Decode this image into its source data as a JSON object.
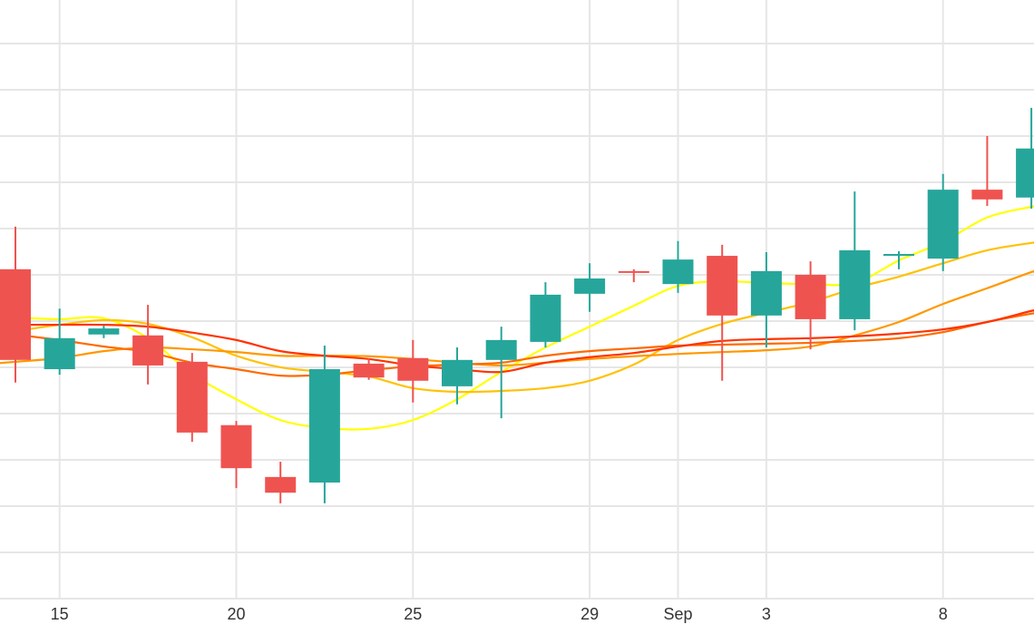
{
  "chart_data": {
    "type": "candlestick",
    "title": "",
    "xlabel": "",
    "ylabel": "",
    "ylim": [
      0,
      129.4
    ],
    "grid": true,
    "legend": "none",
    "y_gridlines": [
      0,
      10,
      20,
      30,
      40,
      50,
      60,
      70,
      80,
      90,
      100,
      110,
      120
    ],
    "x_tick_labels": [
      {
        "index": 1,
        "label": "15"
      },
      {
        "index": 5,
        "label": "20"
      },
      {
        "index": 9,
        "label": "25"
      },
      {
        "index": 13,
        "label": "29"
      },
      {
        "index": 15,
        "label": "Sep"
      },
      {
        "index": 17,
        "label": "3"
      },
      {
        "index": 21,
        "label": "8"
      }
    ],
    "colors": {
      "up": "#26a69a",
      "down": "#ef5350",
      "grid": "#e6e6e6"
    },
    "candles": [
      {
        "o": 71.2,
        "h": 80.4,
        "l": 46.7,
        "c": 51.6
      },
      {
        "o": 49.6,
        "h": 62.7,
        "l": 48.4,
        "c": 56.3
      },
      {
        "o": 57.1,
        "h": 59.0,
        "l": 56.3,
        "c": 58.4
      },
      {
        "o": 56.9,
        "h": 63.5,
        "l": 46.3,
        "c": 50.4
      },
      {
        "o": 51.2,
        "h": 53.1,
        "l": 33.9,
        "c": 35.9
      },
      {
        "o": 37.5,
        "h": 38.4,
        "l": 23.9,
        "c": 28.2
      },
      {
        "o": 26.3,
        "h": 29.6,
        "l": 20.6,
        "c": 22.9
      },
      {
        "o": 25.1,
        "h": 54.7,
        "l": 20.6,
        "c": 49.6
      },
      {
        "o": 50.8,
        "h": 52.0,
        "l": 47.3,
        "c": 47.8
      },
      {
        "o": 52.0,
        "h": 55.9,
        "l": 42.4,
        "c": 47.1
      },
      {
        "o": 45.9,
        "h": 54.3,
        "l": 42.0,
        "c": 51.6
      },
      {
        "o": 51.6,
        "h": 58.8,
        "l": 39.0,
        "c": 55.9
      },
      {
        "o": 55.5,
        "h": 68.4,
        "l": 54.3,
        "c": 65.7
      },
      {
        "o": 65.9,
        "h": 72.5,
        "l": 62.0,
        "c": 69.2
      },
      {
        "o": 70.8,
        "h": 71.2,
        "l": 68.4,
        "c": 70.6
      },
      {
        "o": 68.0,
        "h": 77.3,
        "l": 66.1,
        "c": 73.3
      },
      {
        "o": 74.1,
        "h": 76.5,
        "l": 47.1,
        "c": 61.2
      },
      {
        "o": 61.2,
        "h": 74.9,
        "l": 54.3,
        "c": 70.8
      },
      {
        "o": 70.0,
        "h": 72.9,
        "l": 53.9,
        "c": 60.4
      },
      {
        "o": 60.4,
        "h": 88.0,
        "l": 58.0,
        "c": 75.3
      },
      {
        "o": 74.3,
        "h": 75.1,
        "l": 71.2,
        "c": 74.5
      },
      {
        "o": 73.5,
        "h": 91.8,
        "l": 70.8,
        "c": 88.4
      },
      {
        "o": 88.4,
        "h": 100.0,
        "l": 84.9,
        "c": 86.3
      },
      {
        "o": 86.7,
        "h": 106.1,
        "l": 84.3,
        "c": 97.3
      }
    ],
    "series": [
      {
        "name": "ma-yellow",
        "color": "#ffff00",
        "values": [
          60.8,
          60.4,
          60.6,
          56.3,
          48.6,
          43.1,
          38.6,
          36.9,
          36.7,
          38.6,
          43.1,
          49.0,
          54.3,
          58.8,
          63.3,
          67.6,
          68.6,
          68.2,
          68.0,
          68.2,
          73.1,
          77.1,
          82.4,
          84.7
        ]
      },
      {
        "name": "ma-gold",
        "color": "#ffc107",
        "values": [
          57.8,
          59.2,
          60.2,
          59.4,
          56.5,
          52.5,
          50.0,
          49.0,
          48.0,
          45.5,
          44.7,
          44.9,
          45.5,
          47.1,
          50.6,
          55.9,
          59.4,
          61.8,
          64.1,
          67.1,
          69.6,
          72.5,
          75.3,
          76.9
        ]
      },
      {
        "name": "ma-orange",
        "color": "#ff9800",
        "values": [
          51.2,
          52.0,
          53.5,
          54.3,
          53.9,
          53.3,
          52.5,
          52.5,
          52.4,
          51.8,
          51.0,
          50.4,
          51.0,
          51.8,
          52.4,
          52.9,
          53.3,
          53.7,
          54.5,
          56.9,
          59.8,
          63.7,
          67.1,
          70.6
        ]
      },
      {
        "name": "ma-dark-orange",
        "color": "#ff6a00",
        "values": [
          57.1,
          55.9,
          54.5,
          53.3,
          51.0,
          49.6,
          48.2,
          48.4,
          49.4,
          50.2,
          50.6,
          51.0,
          52.5,
          53.5,
          54.1,
          54.7,
          54.9,
          55.1,
          55.3,
          55.7,
          56.3,
          57.6,
          59.8,
          61.6
        ]
      },
      {
        "name": "ma-red",
        "color": "#ff3300",
        "values": [
          59.2,
          59.2,
          59.2,
          58.8,
          57.5,
          55.9,
          53.5,
          52.5,
          51.8,
          50.4,
          49.6,
          49.0,
          51.0,
          52.2,
          53.1,
          54.5,
          55.7,
          56.1,
          56.3,
          56.7,
          57.3,
          58.2,
          59.8,
          62.2
        ]
      }
    ]
  }
}
